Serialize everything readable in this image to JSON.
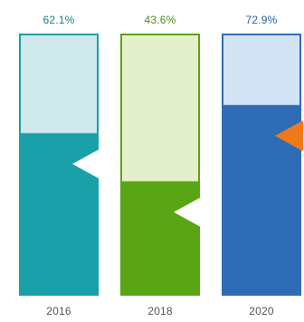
{
  "chart_data": {
    "type": "bar",
    "title": "",
    "xlabel": "",
    "ylabel": "",
    "ylim": [
      0,
      100
    ],
    "grid": false,
    "legend": "none",
    "categories": [
      "2016",
      "2018",
      "2020"
    ],
    "values": [
      62.1,
      43.6,
      72.9
    ],
    "value_labels": [
      "62.1%",
      "43.6%",
      "72.9%"
    ],
    "colors": [
      {
        "fill": "#1aa0a8",
        "track": "#cfe8ec",
        "marker": "#ffffff",
        "label": "#167f86"
      },
      {
        "fill": "#5aa515",
        "track": "#e4efcc",
        "marker": "#ffffff",
        "label": "#4c8f12"
      },
      {
        "fill": "#2e6db6",
        "track": "#d2e3f4",
        "marker": "#f07a1a",
        "label": "#2a5f9f"
      }
    ],
    "year_label_color": "#555555"
  }
}
